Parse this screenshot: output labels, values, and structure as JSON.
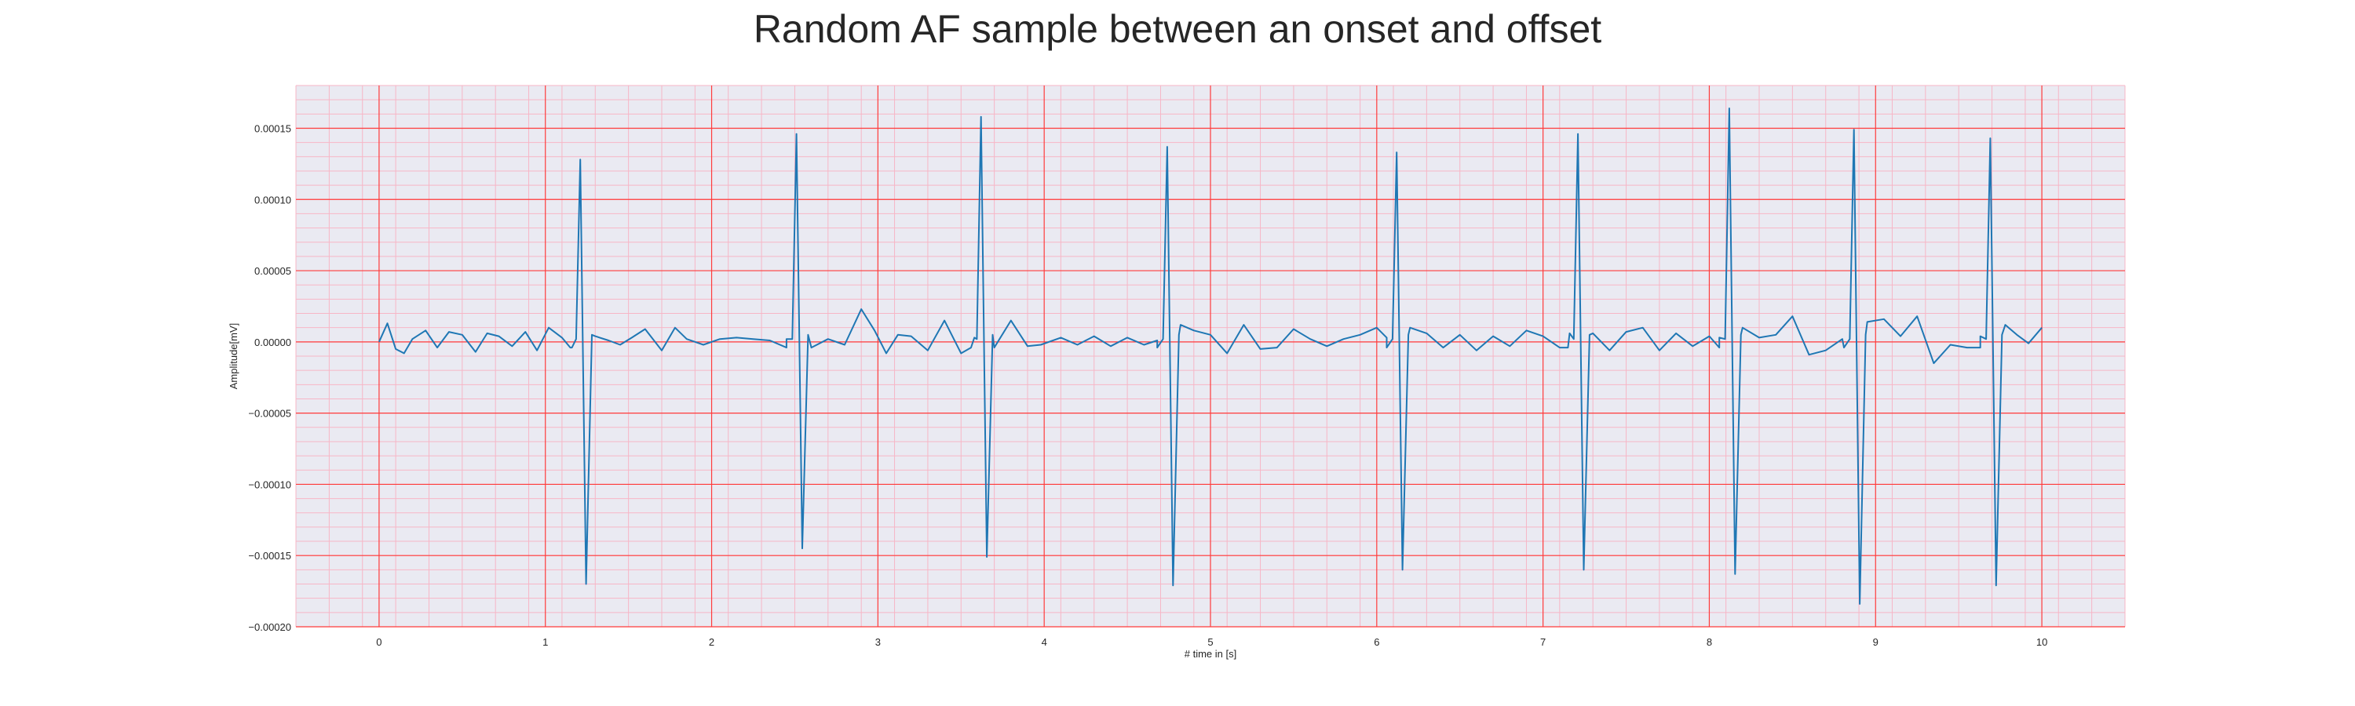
{
  "chart_data": {
    "type": "line",
    "title": "Random AF sample between an onset and offset",
    "xlabel": "# time in [s]",
    "ylabel": "Amplitude[mV]",
    "xlim": [
      -0.5,
      10.5
    ],
    "ylim": [
      -0.0002,
      0.00018
    ],
    "x_ticks": [
      0,
      1,
      2,
      3,
      4,
      5,
      6,
      7,
      8,
      9,
      10
    ],
    "x_tick_labels": [
      "0",
      "1",
      "2",
      "3",
      "4",
      "5",
      "6",
      "7",
      "8",
      "9",
      "10"
    ],
    "y_ticks": [
      0.00015,
      0.0001,
      5e-05,
      0,
      -5e-05,
      -0.0001,
      -0.00015,
      -0.0002
    ],
    "y_tick_labels": [
      "0.00015",
      "0.00010",
      "0.00005",
      "0.00000",
      "−0.00005",
      "−0.00010",
      "−0.00015",
      "−0.00020"
    ],
    "grid": true,
    "colors": {
      "background": "#eaeaf2",
      "major_grid": "#ff3b3b",
      "minor_grid": "#f7b6c6",
      "line": "#1f77b4",
      "text": "#262626"
    },
    "series": [
      {
        "beats": [
          {
            "t": 1.21,
            "peak": 0.000128,
            "trough": -0.00017
          },
          {
            "t": 2.51,
            "peak": 0.000146,
            "trough": -0.000145
          },
          {
            "t": 3.62,
            "peak": 0.000158,
            "trough": -0.000151
          },
          {
            "t": 4.74,
            "peak": 0.000137,
            "trough": -0.000171
          },
          {
            "t": 6.12,
            "peak": 0.000133,
            "trough": -0.00016
          },
          {
            "t": 7.21,
            "peak": 0.000146,
            "trough": -0.00016
          },
          {
            "t": 8.12,
            "peak": 0.000164,
            "trough": -0.000163
          },
          {
            "t": 8.87,
            "peak": 0.000149,
            "trough": -0.000184
          },
          {
            "t": 9.69,
            "peak": 0.000143,
            "trough": -0.000171
          }
        ],
        "baseline_x": [
          0,
          0.05,
          0.1,
          0.15,
          0.2,
          0.28,
          0.35,
          0.42,
          0.5,
          0.58,
          0.65,
          0.72,
          0.8,
          0.88,
          0.95,
          1.02,
          1.1,
          1.16,
          1.3,
          1.38,
          1.45,
          1.52,
          1.6,
          1.7,
          1.78,
          1.85,
          1.95,
          2.05,
          2.15,
          2.25,
          2.35,
          2.45,
          2.6,
          2.7,
          2.8,
          2.9,
          2.98,
          3.05,
          3.12,
          3.2,
          3.3,
          3.4,
          3.5,
          3.58,
          3.7,
          3.8,
          3.9,
          3.98,
          4.1,
          4.2,
          4.3,
          4.4,
          4.5,
          4.6,
          4.68,
          4.82,
          4.9,
          5.0,
          5.1,
          5.2,
          5.3,
          5.4,
          5.5,
          5.6,
          5.7,
          5.8,
          5.9,
          6.0,
          6.06,
          6.2,
          6.3,
          6.4,
          6.5,
          6.6,
          6.7,
          6.8,
          6.9,
          7.0,
          7.1,
          7.16,
          7.3,
          7.4,
          7.5,
          7.6,
          7.7,
          7.8,
          7.9,
          8.0,
          8.06,
          8.2,
          8.3,
          8.4,
          8.5,
          8.6,
          8.7,
          8.8,
          8.95,
          9.05,
          9.15,
          9.25,
          9.35,
          9.45,
          9.55,
          9.63,
          9.78,
          9.85,
          9.92,
          10.0
        ],
        "baseline_y": [
          0,
          1.3e-05,
          -5e-06,
          -8e-06,
          2e-06,
          8e-06,
          -4e-06,
          7e-06,
          5e-06,
          -7e-06,
          6e-06,
          4e-06,
          -3e-06,
          7e-06,
          -6e-06,
          1e-05,
          3e-06,
          -4e-06,
          4e-06,
          1e-06,
          -2e-06,
          3e-06,
          9e-06,
          -6e-06,
          1e-05,
          2e-06,
          -2e-06,
          2e-06,
          3e-06,
          2e-06,
          1e-06,
          2e-06,
          -4e-06,
          2e-06,
          -2e-06,
          2.3e-05,
          8e-06,
          -8e-06,
          5e-06,
          4e-06,
          -6e-06,
          1.5e-05,
          -8e-06,
          3e-06,
          -4e-06,
          1.5e-05,
          -3e-06,
          -2e-06,
          3e-06,
          -2e-06,
          4e-06,
          -3e-06,
          3e-06,
          -2e-06,
          1e-06,
          1.2e-05,
          8e-06,
          5e-06,
          -8e-06,
          1.2e-05,
          -5e-06,
          -4e-06,
          9e-06,
          2e-06,
          -3e-06,
          2e-06,
          5e-06,
          1e-05,
          3e-06,
          1e-05,
          6e-06,
          -4e-06,
          5e-06,
          -6e-06,
          4e-06,
          -3e-06,
          8e-06,
          4e-06,
          -4e-06,
          6e-06,
          6e-06,
          -6e-06,
          7e-06,
          1e-05,
          -6e-06,
          6e-06,
          -3e-06,
          4e-06,
          3e-06,
          1e-05,
          3e-06,
          5e-06,
          1.8e-05,
          -9e-06,
          -6e-06,
          2e-06,
          1.4e-05,
          1.6e-05,
          4e-06,
          1.8e-05,
          -1.5e-05,
          -2e-06,
          -4e-06,
          4e-06,
          1.2e-05,
          5e-06,
          -1e-06,
          1e-05
        ]
      }
    ]
  }
}
